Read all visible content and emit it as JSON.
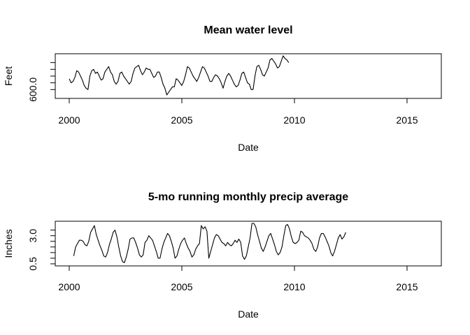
{
  "chart_data": [
    {
      "type": "line",
      "title": "Mean water level",
      "xlabel": "Date",
      "ylabel": "Feet",
      "xlim": [
        2000,
        2016
      ],
      "ylim": [
        599.5,
        602.5
      ],
      "x_ticks": [
        2000,
        2005,
        2010,
        2015
      ],
      "x_tick_labels": [
        "2000",
        "2005",
        "2010",
        "2015"
      ],
      "y_labeled_tick": "600.0",
      "y_ticks": [
        600.0,
        600.5,
        601.0,
        601.5,
        602.0
      ],
      "series": [
        {
          "x_start": 2000.0,
          "x_step": 0.0833,
          "values": [
            600.8,
            600.5,
            600.6,
            600.9,
            601.4,
            601.3,
            601.0,
            600.7,
            600.3,
            600.1,
            600.0,
            601.0,
            601.4,
            601.5,
            601.2,
            601.3,
            601.0,
            600.7,
            600.8,
            601.3,
            601.5,
            601.7,
            601.3,
            601.1,
            600.6,
            600.4,
            600.6,
            601.2,
            601.3,
            601.0,
            600.8,
            600.6,
            600.4,
            600.6,
            601.2,
            601.6,
            601.7,
            601.8,
            601.4,
            601.1,
            601.3,
            601.6,
            601.5,
            601.5,
            601.2,
            600.9,
            601.0,
            601.3,
            601.3,
            600.9,
            600.4,
            600.1,
            599.6,
            599.8,
            600.0,
            600.2,
            600.2,
            600.8,
            600.7,
            600.5,
            600.3,
            600.6,
            601.1,
            601.7,
            601.6,
            601.3,
            601.0,
            600.8,
            600.6,
            600.9,
            601.3,
            601.7,
            601.6,
            601.3,
            601.0,
            600.6,
            600.6,
            600.9,
            601.1,
            601.0,
            600.8,
            600.5,
            600.1,
            600.6,
            601.0,
            601.2,
            601.0,
            600.7,
            600.4,
            600.2,
            600.3,
            600.7,
            601.2,
            601.3,
            600.9,
            600.5,
            600.4,
            600.0,
            600.0,
            601.0,
            601.7,
            601.8,
            601.5,
            601.1,
            601.0,
            601.3,
            601.6,
            602.2,
            602.3,
            602.1,
            601.9,
            601.6,
            601.7,
            602.1,
            602.5,
            602.3,
            602.2,
            602.0
          ]
        }
      ]
    },
    {
      "type": "line",
      "title": "5-mo running monthly precip average",
      "xlabel": "Date",
      "ylabel": "Inches",
      "xlim": [
        2000,
        2016
      ],
      "ylim": [
        0.5,
        4.1
      ],
      "x_ticks": [
        2000,
        2005,
        2010,
        2015
      ],
      "x_tick_labels": [
        "2000",
        "2005",
        "2010",
        "2015"
      ],
      "y_ticks": [
        0.5,
        3.0
      ],
      "y_tick_labels": [
        "0.5",
        "3.0"
      ],
      "y_minor_ticks": [
        1.0,
        1.5,
        2.0,
        2.5,
        3.5
      ],
      "series": [
        {
          "x_start": 2000.2,
          "x_step": 0.0833,
          "values": [
            1.2,
            2.0,
            2.3,
            2.6,
            2.6,
            2.5,
            2.2,
            2.1,
            2.5,
            3.3,
            3.6,
            3.9,
            3.1,
            2.6,
            2.1,
            1.7,
            1.2,
            1.1,
            1.5,
            2.2,
            2.7,
            3.3,
            3.5,
            2.9,
            2.0,
            1.2,
            0.7,
            0.6,
            1.1,
            1.8,
            2.7,
            2.8,
            2.8,
            2.4,
            1.9,
            1.3,
            1.1,
            1.3,
            2.4,
            2.6,
            3.0,
            2.8,
            2.6,
            2.1,
            1.6,
            1.0,
            1.0,
            1.8,
            2.4,
            2.8,
            3.2,
            3.0,
            2.5,
            1.9,
            1.0,
            1.2,
            1.8,
            2.3,
            2.6,
            2.8,
            2.3,
            1.9,
            1.6,
            1.1,
            1.3,
            1.8,
            2.1,
            2.3,
            3.9,
            3.6,
            3.8,
            3.4,
            1.0,
            1.6,
            2.2,
            2.8,
            3.1,
            3.0,
            2.7,
            2.4,
            2.3,
            2.1,
            2.4,
            2.2,
            2.1,
            2.3,
            2.6,
            2.4,
            2.7,
            2.4,
            1.2,
            0.9,
            1.2,
            2.0,
            2.8,
            4.1,
            4.1,
            3.8,
            3.1,
            2.5,
            1.9,
            1.6,
            2.0,
            2.5,
            3.0,
            3.2,
            2.7,
            2.2,
            1.6,
            1.3,
            1.5,
            2.0,
            3.0,
            3.9,
            4.0,
            3.6,
            2.9,
            2.4,
            2.3,
            2.4,
            2.6,
            3.4,
            3.3,
            3.0,
            2.9,
            2.8,
            2.6,
            2.3,
            1.8,
            1.6,
            2.0,
            2.8,
            3.2,
            3.2,
            2.9,
            2.5,
            2.1,
            1.5,
            1.2,
            1.6,
            2.2,
            2.8,
            3.1,
            2.7,
            2.9,
            3.3
          ]
        }
      ]
    }
  ]
}
